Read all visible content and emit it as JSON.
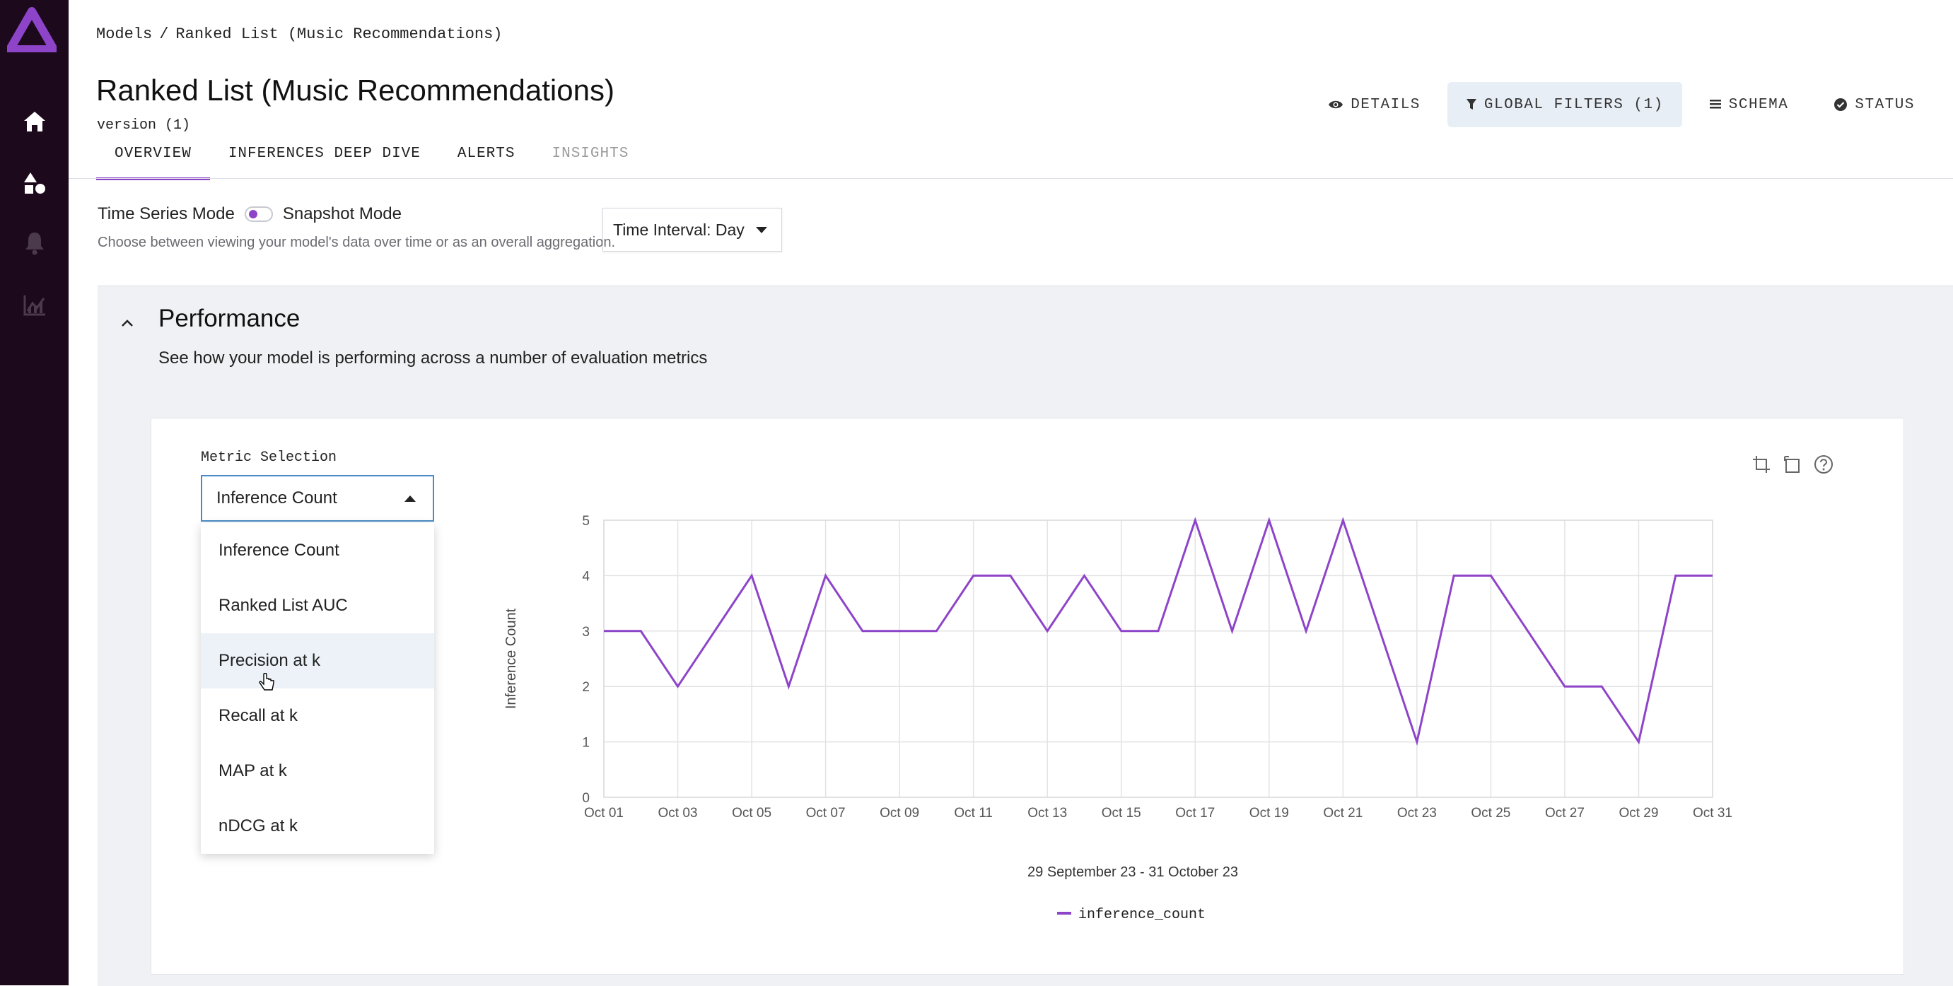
{
  "breadcrumb": {
    "root": "Models",
    "separator": "/",
    "current": "Ranked List (Music Recommendations)"
  },
  "header": {
    "title": "Ranked List (Music Recommendations)",
    "version": "version (1)",
    "actions": {
      "details": "DETAILS",
      "global_filters": "GLOBAL FILTERS (1)",
      "schema": "SCHEMA",
      "status": "STATUS"
    }
  },
  "tabs": [
    {
      "label": "OVERVIEW",
      "state": "active"
    },
    {
      "label": "INFERENCES DEEP DIVE",
      "state": "normal"
    },
    {
      "label": "ALERTS",
      "state": "normal"
    },
    {
      "label": "INSIGHTS",
      "state": "disabled"
    }
  ],
  "mode": {
    "left_label": "Time Series Mode",
    "right_label": "Snapshot Mode",
    "description": "Choose between viewing your model's data over time or as an overall aggregation.",
    "interval": "Time Interval: Day"
  },
  "performance": {
    "title": "Performance",
    "description": "See how your model is performing across a number of evaluation metrics",
    "metric_label": "Metric Selection",
    "selected_metric": "Inference Count",
    "options": [
      "Inference Count",
      "Ranked List AUC",
      "Precision at k",
      "Recall at k",
      "MAP at k",
      "nDCG at k"
    ],
    "hovered_option": "Precision at k"
  },
  "colors": {
    "accent": "#8e44c9",
    "sidebar": "#1c0a1c"
  },
  "chart_data": {
    "type": "line",
    "ylabel": "Inference Count",
    "xlabel": "29 September 23  - 31 October 23",
    "ylim": [
      0,
      5
    ],
    "yticks": [
      0,
      1,
      2,
      3,
      4,
      5
    ],
    "xticks": [
      "Oct 01",
      "Oct 03",
      "Oct 05",
      "Oct 07",
      "Oct 09",
      "Oct 11",
      "Oct 13",
      "Oct 15",
      "Oct 17",
      "Oct 19",
      "Oct 21",
      "Oct 23",
      "Oct 25",
      "Oct 27",
      "Oct 29",
      "Oct 31"
    ],
    "x": [
      "Oct 01",
      "Oct 02",
      "Oct 03",
      "Oct 04",
      "Oct 05",
      "Oct 06",
      "Oct 07",
      "Oct 08",
      "Oct 09",
      "Oct 10",
      "Oct 11",
      "Oct 12",
      "Oct 13",
      "Oct 14",
      "Oct 15",
      "Oct 16",
      "Oct 17",
      "Oct 18",
      "Oct 19",
      "Oct 20",
      "Oct 21",
      "Oct 22",
      "Oct 23",
      "Oct 24",
      "Oct 25",
      "Oct 26",
      "Oct 27",
      "Oct 28",
      "Oct 29",
      "Oct 30",
      "Oct 31"
    ],
    "series": [
      {
        "name": "inference_count",
        "values": [
          3,
          3,
          2,
          3,
          4,
          2,
          4,
          3,
          3,
          3,
          4,
          4,
          3,
          4,
          3,
          3,
          5,
          3,
          5,
          3,
          5,
          3,
          1,
          4,
          4,
          3,
          2,
          2,
          1,
          4,
          4
        ]
      }
    ],
    "grid": true,
    "legend": "bottom-center"
  }
}
